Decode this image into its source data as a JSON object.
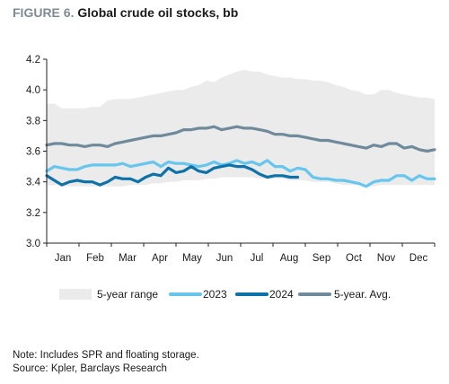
{
  "figure": {
    "label": "FIGURE 6.",
    "title": "Global crude oil stocks, bb"
  },
  "notes": {
    "note": "Note: Includes SPR and floating storage.",
    "source": "Source: Kpler, Barclays Research"
  },
  "colors": {
    "range_fill": "#ebebeb",
    "y2023": "#66c6ee",
    "y2024": "#0d72a8",
    "avg": "#6e8a9b",
    "axis": "#222222"
  },
  "chart_data": {
    "type": "line",
    "x_unit": "week",
    "x_range": [
      1,
      52
    ],
    "x_tick_labels": [
      "Jan",
      "Feb",
      "Mar",
      "Apr",
      "May",
      "Jun",
      "Jul",
      "Aug",
      "Sep",
      "Oct",
      "Nov",
      "Dec"
    ],
    "y_ticks": [
      3.0,
      3.2,
      3.4,
      3.6,
      3.8,
      4.0,
      4.2
    ],
    "ylim": [
      3.0,
      4.2
    ],
    "grid": false,
    "legend": "bottom",
    "series": [
      {
        "name": "5-year range",
        "kind": "band",
        "x": [
          1,
          2,
          3,
          4,
          5,
          6,
          7,
          8,
          9,
          10,
          11,
          12,
          13,
          14,
          15,
          16,
          17,
          18,
          19,
          20,
          21,
          22,
          23,
          24,
          25,
          26,
          27,
          28,
          29,
          30,
          31,
          32,
          33,
          34,
          35,
          36,
          37,
          38,
          39,
          40,
          41,
          42,
          43,
          44,
          45,
          46,
          47,
          48,
          49,
          50,
          51,
          52
        ],
        "upper": [
          3.91,
          3.91,
          3.88,
          3.88,
          3.88,
          3.88,
          3.89,
          3.89,
          3.93,
          3.94,
          3.94,
          3.94,
          3.95,
          3.96,
          3.97,
          3.98,
          3.99,
          4.0,
          4.0,
          4.02,
          4.03,
          4.06,
          4.05,
          4.08,
          4.1,
          4.12,
          4.13,
          4.12,
          4.12,
          4.1,
          4.09,
          4.08,
          4.08,
          4.07,
          4.07,
          4.06,
          4.06,
          4.05,
          4.03,
          4.02,
          4.0,
          3.99,
          3.97,
          3.97,
          4.0,
          4.0,
          3.98,
          3.97,
          3.96,
          3.95,
          3.95,
          3.94
        ],
        "lower": [
          3.38,
          3.38,
          3.38,
          3.37,
          3.37,
          3.37,
          3.37,
          3.37,
          3.37,
          3.37,
          3.37,
          3.38,
          3.38,
          3.38,
          3.39,
          3.39,
          3.4,
          3.4,
          3.41,
          3.41,
          3.41,
          3.42,
          3.42,
          3.43,
          3.43,
          3.43,
          3.43,
          3.43,
          3.42,
          3.42,
          3.42,
          3.42,
          3.41,
          3.41,
          3.41,
          3.4,
          3.4,
          3.4,
          3.39,
          3.38,
          3.38,
          3.38,
          3.37,
          3.37,
          3.38,
          3.38,
          3.38,
          3.38,
          3.38,
          3.38,
          3.38,
          3.38
        ]
      },
      {
        "name": "2023",
        "x": [
          1,
          2,
          3,
          4,
          5,
          6,
          7,
          8,
          9,
          10,
          11,
          12,
          13,
          14,
          15,
          16,
          17,
          18,
          19,
          20,
          21,
          22,
          23,
          24,
          25,
          26,
          27,
          28,
          29,
          30,
          31,
          32,
          33,
          34,
          35,
          36,
          37,
          38,
          39,
          40,
          41,
          42,
          43,
          44,
          45,
          46,
          47,
          48,
          49,
          50,
          51,
          52
        ],
        "values": [
          3.47,
          3.5,
          3.49,
          3.48,
          3.48,
          3.5,
          3.51,
          3.51,
          3.51,
          3.51,
          3.52,
          3.5,
          3.51,
          3.52,
          3.53,
          3.5,
          3.53,
          3.52,
          3.52,
          3.51,
          3.5,
          3.51,
          3.53,
          3.51,
          3.52,
          3.54,
          3.52,
          3.53,
          3.51,
          3.54,
          3.5,
          3.5,
          3.47,
          3.49,
          3.48,
          3.43,
          3.42,
          3.42,
          3.41,
          3.41,
          3.4,
          3.39,
          3.37,
          3.4,
          3.41,
          3.41,
          3.44,
          3.44,
          3.41,
          3.44,
          3.42,
          3.42
        ]
      },
      {
        "name": "2024",
        "x": [
          1,
          2,
          3,
          4,
          5,
          6,
          7,
          8,
          9,
          10,
          11,
          12,
          13,
          14,
          15,
          16,
          17,
          18,
          19,
          20,
          21,
          22,
          23,
          24,
          25,
          26,
          27,
          28,
          29,
          30,
          31,
          32,
          33,
          34
        ],
        "values": [
          3.44,
          3.41,
          3.38,
          3.4,
          3.41,
          3.4,
          3.4,
          3.38,
          3.4,
          3.43,
          3.42,
          3.42,
          3.4,
          3.43,
          3.45,
          3.44,
          3.49,
          3.46,
          3.47,
          3.5,
          3.47,
          3.46,
          3.49,
          3.5,
          3.51,
          3.5,
          3.5,
          3.48,
          3.45,
          3.43,
          3.44,
          3.44,
          3.43,
          3.43
        ]
      },
      {
        "name": "5-year. Avg.",
        "x": [
          1,
          2,
          3,
          4,
          5,
          6,
          7,
          8,
          9,
          10,
          11,
          12,
          13,
          14,
          15,
          16,
          17,
          18,
          19,
          20,
          21,
          22,
          23,
          24,
          25,
          26,
          27,
          28,
          29,
          30,
          31,
          32,
          33,
          34,
          35,
          36,
          37,
          38,
          39,
          40,
          41,
          42,
          43,
          44,
          45,
          46,
          47,
          48,
          49,
          50,
          51,
          52
        ],
        "values": [
          3.64,
          3.65,
          3.65,
          3.64,
          3.64,
          3.63,
          3.64,
          3.64,
          3.63,
          3.65,
          3.66,
          3.67,
          3.68,
          3.69,
          3.7,
          3.7,
          3.71,
          3.72,
          3.74,
          3.74,
          3.75,
          3.75,
          3.76,
          3.74,
          3.75,
          3.76,
          3.75,
          3.75,
          3.74,
          3.73,
          3.71,
          3.71,
          3.7,
          3.7,
          3.69,
          3.68,
          3.67,
          3.67,
          3.66,
          3.65,
          3.64,
          3.63,
          3.62,
          3.64,
          3.63,
          3.65,
          3.65,
          3.62,
          3.63,
          3.61,
          3.6,
          3.61
        ]
      }
    ]
  }
}
